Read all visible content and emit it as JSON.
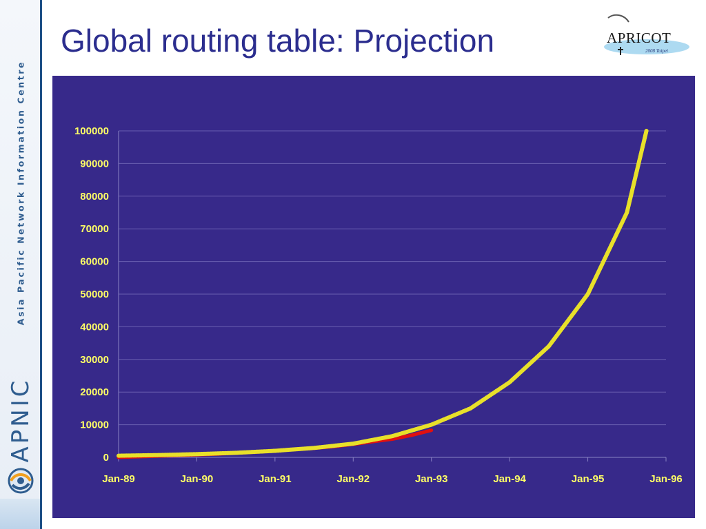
{
  "slide": {
    "title": "Global routing table: Projection"
  },
  "sidebar": {
    "org_name": "Asia Pacific Network Information Centre",
    "logo_text": "APNIC"
  },
  "conference_logo": {
    "name": "APRICOT",
    "tagline": "2008 Taipei"
  },
  "colors": {
    "title": "#2b2d8e",
    "plot_background": "#37298a",
    "tick_text": "#ffff66",
    "projection_line": "#e8e02a",
    "actual_line": "#e01010",
    "brand_blue": "#2f5d8f"
  },
  "chart_data": {
    "type": "line",
    "title": "",
    "xlabel": "",
    "ylabel": "",
    "x_ticks": [
      "Jan-89",
      "Jan-90",
      "Jan-91",
      "Jan-92",
      "Jan-93",
      "Jan-94",
      "Jan-95",
      "Jan-96"
    ],
    "y_ticks": [
      "0",
      "10000",
      "20000",
      "30000",
      "40000",
      "50000",
      "60000",
      "70000",
      "80000",
      "90000",
      "100000"
    ],
    "xlim": [
      "Jan-89",
      "Jan-96"
    ],
    "ylim": [
      0,
      100000
    ],
    "grid": true,
    "legend": "none",
    "series": [
      {
        "key": "actual",
        "color": "#e01010",
        "x": [
          "Jan-89",
          "Jul-89",
          "Jan-90",
          "Apr-90",
          "Jul-90",
          "Oct-90",
          "Jan-91",
          "Apr-91",
          "Jul-91",
          "Oct-91",
          "Jan-92",
          "Apr-92",
          "Jul-92",
          "Oct-92",
          "Jan-93"
        ],
        "y": [
          0,
          400,
          800,
          1000,
          1300,
          1600,
          2000,
          2400,
          2800,
          3300,
          4000,
          4800,
          5600,
          6800,
          8300
        ]
      },
      {
        "key": "projection",
        "color": "#e8e02a",
        "x": [
          "Jan-89",
          "Jul-89",
          "Jan-90",
          "Jul-90",
          "Jan-91",
          "Jul-91",
          "Jan-92",
          "Jul-92",
          "Jan-93",
          "Jul-93",
          "Jan-94",
          "Jul-94",
          "Jan-95",
          "Jul-95",
          "Oct-95"
        ],
        "y": [
          500,
          700,
          1000,
          1400,
          2000,
          2900,
          4200,
          6500,
          10000,
          15000,
          23000,
          34000,
          50000,
          75000,
          100000
        ]
      }
    ]
  }
}
